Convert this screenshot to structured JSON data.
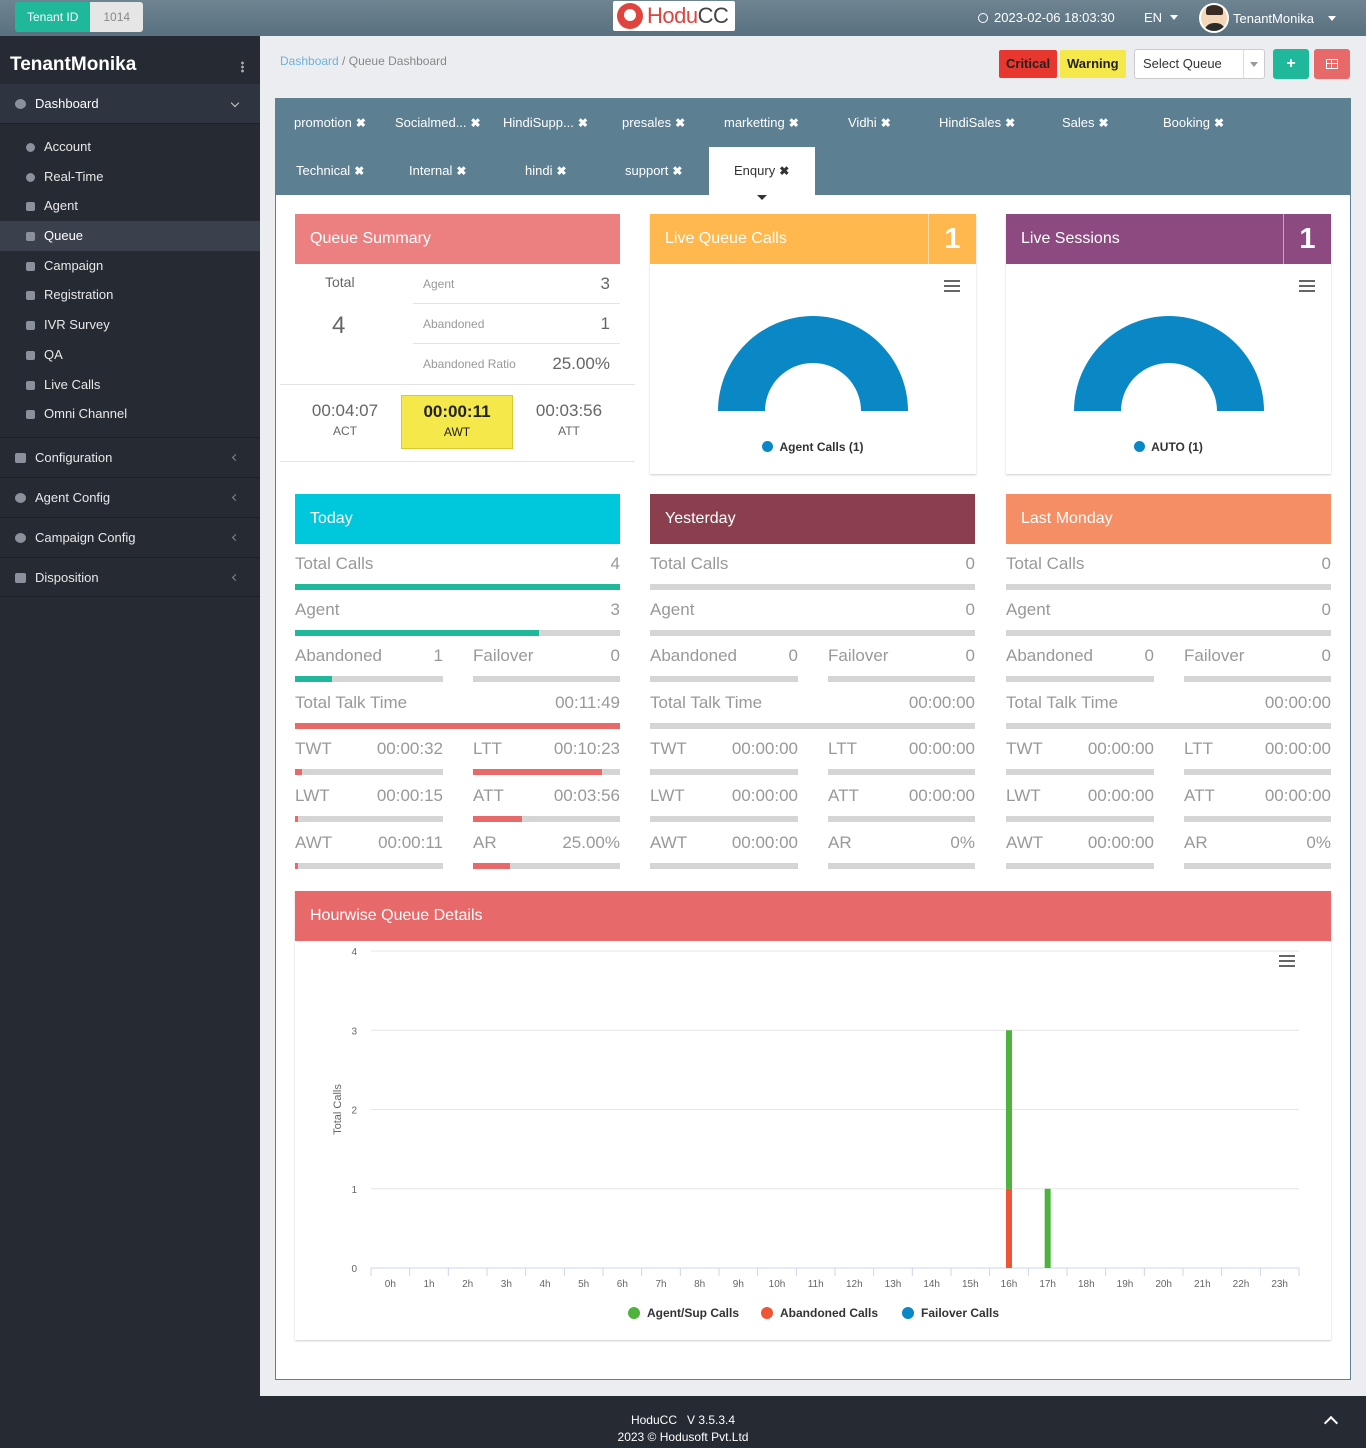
{
  "header": {
    "tenant_label": "Tenant ID",
    "tenant_id": "1014",
    "logo_a": "Hodu",
    "logo_b": "CC",
    "datetime": "2023-02-06 18:03:30",
    "language": "EN",
    "username": "TenantMonika"
  },
  "sidebar": {
    "title": "TenantMonika",
    "dashboard": "Dashboard",
    "items": [
      "Account",
      "Real-Time",
      "Agent",
      "Queue",
      "Campaign",
      "Registration",
      "IVR Survey",
      "QA",
      "Live Calls",
      "Omni Channel"
    ],
    "groups": [
      "Configuration",
      "Agent Config",
      "Campaign Config",
      "Disposition"
    ]
  },
  "breadcrumb": {
    "root": "Dashboard",
    "sep": " / ",
    "current": "Queue Dashboard"
  },
  "toolbar": {
    "critical": "Critical",
    "warning": "Warning",
    "select_queue": "Select Queue",
    "add": "+"
  },
  "tabs": [
    {
      "label": "promotion"
    },
    {
      "label": "Socialmed..."
    },
    {
      "label": "HindiSupp..."
    },
    {
      "label": "presales"
    },
    {
      "label": "marketting"
    },
    {
      "label": "Vidhi"
    },
    {
      "label": "HindiSales"
    },
    {
      "label": "Sales"
    },
    {
      "label": "Booking"
    },
    {
      "label": "Technical"
    },
    {
      "label": "Internal"
    },
    {
      "label": "hindi"
    },
    {
      "label": "support"
    },
    {
      "label": "Enqury"
    }
  ],
  "active_tab": "Enqury",
  "queue_summary": {
    "title": "Queue Summary",
    "total_label": "Total",
    "total": "4",
    "rows": [
      {
        "label": "Agent",
        "value": "3"
      },
      {
        "label": "Abandoned",
        "value": "1"
      },
      {
        "label": "Abandoned Ratio",
        "value": "25.00%"
      }
    ],
    "times": [
      {
        "label": "ACT",
        "value": "00:04:07"
      },
      {
        "label": "AWT",
        "value": "00:00:11"
      },
      {
        "label": "ATT",
        "value": "00:03:56"
      }
    ]
  },
  "live_queue_calls": {
    "title": "Live Queue Calls",
    "count": "1",
    "legend": "Agent Calls (1)",
    "color": "#0a88c6"
  },
  "live_sessions": {
    "title": "Live Sessions",
    "count": "1",
    "legend": "AUTO (1)",
    "color": "#0a88c6"
  },
  "periods": [
    {
      "title": "Today",
      "color": "#00c8dc",
      "total_calls": {
        "label": "Total Calls",
        "value": "4",
        "fill": 1.0
      },
      "agent": {
        "label": "Agent",
        "value": "3",
        "fill": 0.75
      },
      "abandoned": {
        "label": "Abandoned",
        "value": "1",
        "fill": 0.25
      },
      "failover": {
        "label": "Failover",
        "value": "0",
        "fill": 0
      },
      "talk": {
        "label": "Total Talk Time",
        "value": "00:11:49",
        "fill": 1.0
      },
      "twt": {
        "label": "TWT",
        "value": "00:00:32",
        "fill": 0.05
      },
      "ltt": {
        "label": "LTT",
        "value": "00:10:23",
        "fill": 0.88
      },
      "lwt": {
        "label": "LWT",
        "value": "00:00:15",
        "fill": 0.02
      },
      "att": {
        "label": "ATT",
        "value": "00:03:56",
        "fill": 0.33
      },
      "awt": {
        "label": "AWT",
        "value": "00:00:11",
        "fill": 0.02
      },
      "ar": {
        "label": "AR",
        "value": "25.00%",
        "fill": 0.25
      }
    },
    {
      "title": "Yesterday",
      "color": "#8b3f4e",
      "total_calls": {
        "label": "Total Calls",
        "value": "0",
        "fill": 0
      },
      "agent": {
        "label": "Agent",
        "value": "0",
        "fill": 0
      },
      "abandoned": {
        "label": "Abandoned",
        "value": "0",
        "fill": 0
      },
      "failover": {
        "label": "Failover",
        "value": "0",
        "fill": 0
      },
      "talk": {
        "label": "Total Talk Time",
        "value": "00:00:00",
        "fill": 0
      },
      "twt": {
        "label": "TWT",
        "value": "00:00:00",
        "fill": 0
      },
      "ltt": {
        "label": "LTT",
        "value": "00:00:00",
        "fill": 0
      },
      "lwt": {
        "label": "LWT",
        "value": "00:00:00",
        "fill": 0
      },
      "att": {
        "label": "ATT",
        "value": "00:00:00",
        "fill": 0
      },
      "awt": {
        "label": "AWT",
        "value": "00:00:00",
        "fill": 0
      },
      "ar": {
        "label": "AR",
        "value": "0%",
        "fill": 0
      }
    },
    {
      "title": "Last Monday",
      "color": "#f58e64",
      "total_calls": {
        "label": "Total Calls",
        "value": "0",
        "fill": 0
      },
      "agent": {
        "label": "Agent",
        "value": "0",
        "fill": 0
      },
      "abandoned": {
        "label": "Abandoned",
        "value": "0",
        "fill": 0
      },
      "failover": {
        "label": "Failover",
        "value": "0",
        "fill": 0
      },
      "talk": {
        "label": "Total Talk Time",
        "value": "00:00:00",
        "fill": 0
      },
      "twt": {
        "label": "TWT",
        "value": "00:00:00",
        "fill": 0
      },
      "ltt": {
        "label": "LTT",
        "value": "00:00:00",
        "fill": 0
      },
      "lwt": {
        "label": "LWT",
        "value": "00:00:00",
        "fill": 0
      },
      "att": {
        "label": "ATT",
        "value": "00:00:00",
        "fill": 0
      },
      "awt": {
        "label": "AWT",
        "value": "00:00:00",
        "fill": 0
      },
      "ar": {
        "label": "AR",
        "value": "0%",
        "fill": 0
      }
    }
  ],
  "hourwise": {
    "title": "Hourwise Queue Details"
  },
  "chart_data": {
    "type": "bar",
    "stacked": true,
    "ylabel": "Total Calls",
    "ylim": [
      0,
      4
    ],
    "yticks": [
      0,
      1,
      2,
      3,
      4
    ],
    "categories": [
      "0h",
      "1h",
      "2h",
      "3h",
      "4h",
      "5h",
      "6h",
      "7h",
      "8h",
      "9h",
      "10h",
      "11h",
      "12h",
      "13h",
      "14h",
      "15h",
      "16h",
      "17h",
      "18h",
      "19h",
      "20h",
      "21h",
      "22h",
      "23h"
    ],
    "series": [
      {
        "name": "Agent/Sup Calls",
        "color": "#4db33d",
        "values": [
          0,
          0,
          0,
          0,
          0,
          0,
          0,
          0,
          0,
          0,
          0,
          0,
          0,
          0,
          0,
          0,
          2,
          1,
          0,
          0,
          0,
          0,
          0,
          0
        ]
      },
      {
        "name": "Abandoned Calls",
        "color": "#ee5535",
        "values": [
          0,
          0,
          0,
          0,
          0,
          0,
          0,
          0,
          0,
          0,
          0,
          0,
          0,
          0,
          0,
          0,
          1,
          0,
          0,
          0,
          0,
          0,
          0,
          0
        ]
      },
      {
        "name": "Failover Calls",
        "color": "#0a88c6",
        "values": [
          0,
          0,
          0,
          0,
          0,
          0,
          0,
          0,
          0,
          0,
          0,
          0,
          0,
          0,
          0,
          0,
          0,
          0,
          0,
          0,
          0,
          0,
          0,
          0
        ]
      }
    ],
    "legend_position": "bottom"
  },
  "footer": {
    "line1": "HoduCC   V 3.5.3.4",
    "line2": "2023 © Hodusoft Pvt.Ltd"
  },
  "colors": {
    "teal": "#1fb89a",
    "red_bar": "#e8696a",
    "qs_header": "#ec7f80",
    "lqc_header": "#ffb84d",
    "ls_header": "#8c4a80",
    "hourwise_header": "#e8696a"
  }
}
